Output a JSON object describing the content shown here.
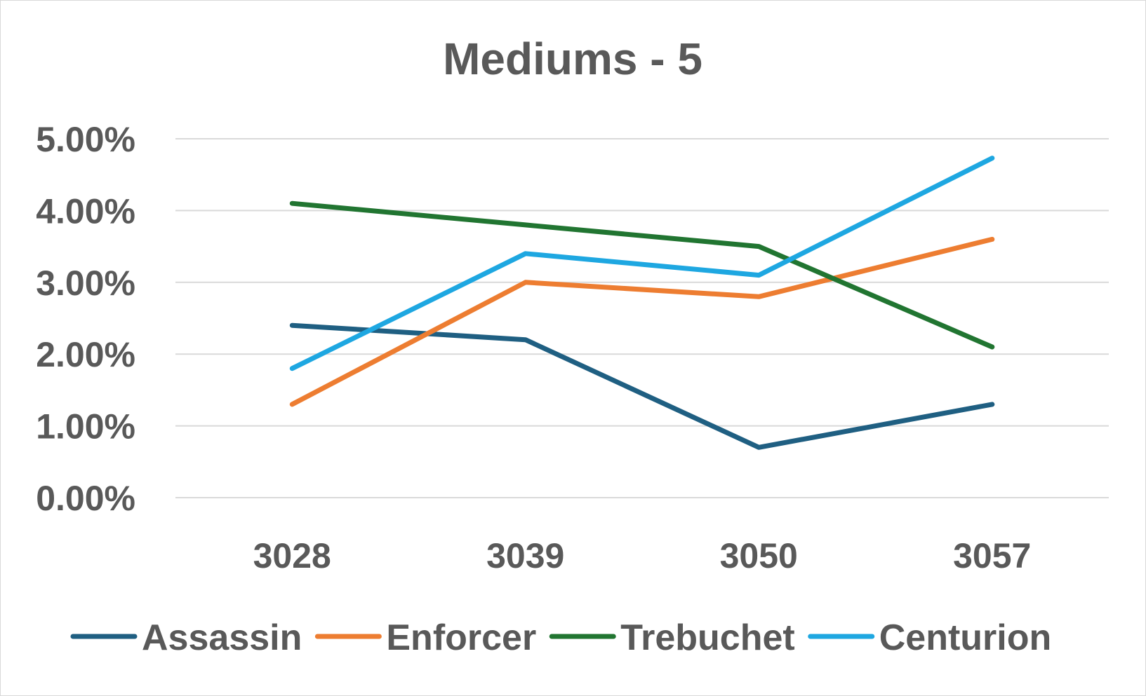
{
  "chart_data": {
    "type": "line",
    "title": "Mediums - 5",
    "xlabel": "",
    "ylabel": "",
    "categories": [
      "3028",
      "3039",
      "3050",
      "3057"
    ],
    "y_ticks": [
      "0.00%",
      "1.00%",
      "2.00%",
      "3.00%",
      "4.00%",
      "5.00%"
    ],
    "ylim": [
      0,
      5
    ],
    "y_unit": "%",
    "grid": true,
    "legend_position": "bottom",
    "series": [
      {
        "name": "Assassin",
        "color": "#1f5f82",
        "values": [
          2.4,
          2.2,
          0.7,
          1.3
        ]
      },
      {
        "name": "Enforcer",
        "color": "#ed7d31",
        "values": [
          1.3,
          3.0,
          2.8,
          3.6
        ]
      },
      {
        "name": "Trebuchet",
        "color": "#217531",
        "values": [
          4.1,
          3.8,
          3.5,
          2.1
        ]
      },
      {
        "name": "Centurion",
        "color": "#1ea7e1",
        "values": [
          1.8,
          3.4,
          3.1,
          4.73
        ]
      }
    ]
  }
}
